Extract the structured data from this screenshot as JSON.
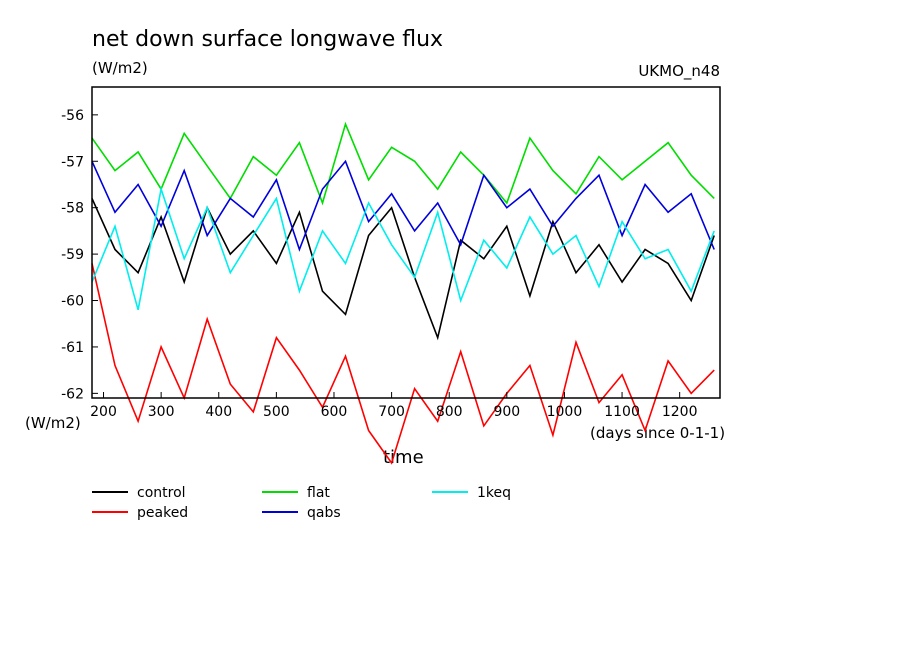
{
  "chart_data": {
    "type": "line",
    "title": "net down surface longwave flux",
    "units_label": "(W/m2)",
    "ylabel_bottom": "(W/m2)",
    "model_label": "UKMO_n48",
    "xlabel": "time",
    "xunits": "(days since 0-1-1)",
    "xlim": [
      180,
      1270
    ],
    "ylim": [
      -62.1,
      -55.4
    ],
    "x_ticks": [
      200,
      300,
      400,
      500,
      600,
      700,
      800,
      900,
      1000,
      1100,
      1200
    ],
    "y_ticks": [
      -56,
      -57,
      -58,
      -59,
      -60,
      -61,
      -62
    ],
    "grid": false,
    "legend_position": "below",
    "series": [
      {
        "name": "control",
        "color": "#000000",
        "x": [
          180,
          220,
          260,
          300,
          340,
          380,
          420,
          460,
          500,
          540,
          580,
          620,
          660,
          700,
          740,
          780,
          820,
          860,
          900,
          940,
          980,
          1020,
          1060,
          1100,
          1140,
          1180,
          1220,
          1260
        ],
        "y": [
          -57.8,
          -58.9,
          -59.4,
          -58.2,
          -59.6,
          -58.0,
          -59.0,
          -58.5,
          -59.2,
          -58.1,
          -59.8,
          -60.3,
          -58.6,
          -58.0,
          -59.5,
          -60.8,
          -58.7,
          -59.1,
          -58.4,
          -59.9,
          -58.3,
          -59.4,
          -58.8,
          -59.6,
          -58.9,
          -59.2,
          -60.0,
          -58.6
        ]
      },
      {
        "name": "peaked",
        "color": "#ff0000",
        "x": [
          180,
          220,
          260,
          300,
          340,
          380,
          420,
          460,
          500,
          540,
          580,
          620,
          660,
          700,
          740,
          780,
          820,
          860,
          900,
          940,
          980,
          1020,
          1060,
          1100,
          1140,
          1180,
          1220,
          1260
        ],
        "y": [
          -59.2,
          -61.4,
          -62.6,
          -61.0,
          -62.1,
          -60.4,
          -61.8,
          -62.4,
          -60.8,
          -61.5,
          -62.3,
          -61.2,
          -62.8,
          -63.5,
          -61.9,
          -62.6,
          -61.1,
          -62.7,
          -62.0,
          -61.4,
          -62.9,
          -60.9,
          -62.2,
          -61.6,
          -62.8,
          -61.3,
          -62.0,
          -61.5
        ]
      },
      {
        "name": "flat",
        "color": "#00dd00",
        "x": [
          180,
          220,
          260,
          300,
          340,
          380,
          420,
          460,
          500,
          540,
          580,
          620,
          660,
          700,
          740,
          780,
          820,
          860,
          900,
          940,
          980,
          1020,
          1060,
          1100,
          1140,
          1180,
          1220,
          1260
        ],
        "y": [
          -56.5,
          -57.2,
          -56.8,
          -57.6,
          -56.4,
          -57.1,
          -57.8,
          -56.9,
          -57.3,
          -56.6,
          -57.9,
          -56.2,
          -57.4,
          -56.7,
          -57.0,
          -57.6,
          -56.8,
          -57.3,
          -57.9,
          -56.5,
          -57.2,
          -57.7,
          -56.9,
          -57.4,
          -57.0,
          -56.6,
          -57.3,
          -57.8
        ]
      },
      {
        "name": "qabs",
        "color": "#0000dd",
        "x": [
          180,
          220,
          260,
          300,
          340,
          380,
          420,
          460,
          500,
          540,
          580,
          620,
          660,
          700,
          740,
          780,
          820,
          860,
          900,
          940,
          980,
          1020,
          1060,
          1100,
          1140,
          1180,
          1220,
          1260
        ],
        "y": [
          -57.0,
          -58.1,
          -57.5,
          -58.4,
          -57.2,
          -58.6,
          -57.8,
          -58.2,
          -57.4,
          -58.9,
          -57.6,
          -57.0,
          -58.3,
          -57.7,
          -58.5,
          -57.9,
          -58.8,
          -57.3,
          -58.0,
          -57.6,
          -58.4,
          -57.8,
          -57.3,
          -58.6,
          -57.5,
          -58.1,
          -57.7,
          -58.9
        ]
      },
      {
        "name": "1keq",
        "color": "#00eeee",
        "x": [
          180,
          220,
          260,
          300,
          340,
          380,
          420,
          460,
          500,
          540,
          580,
          620,
          660,
          700,
          740,
          780,
          820,
          860,
          900,
          940,
          980,
          1020,
          1060,
          1100,
          1140,
          1180,
          1220,
          1260
        ],
        "y": [
          -59.6,
          -58.4,
          -60.2,
          -57.6,
          -59.1,
          -58.0,
          -59.4,
          -58.6,
          -57.8,
          -59.8,
          -58.5,
          -59.2,
          -57.9,
          -58.8,
          -59.5,
          -58.1,
          -60.0,
          -58.7,
          -59.3,
          -58.2,
          -59.0,
          -58.6,
          -59.7,
          -58.3,
          -59.1,
          -58.9,
          -59.8,
          -58.5
        ]
      }
    ]
  }
}
